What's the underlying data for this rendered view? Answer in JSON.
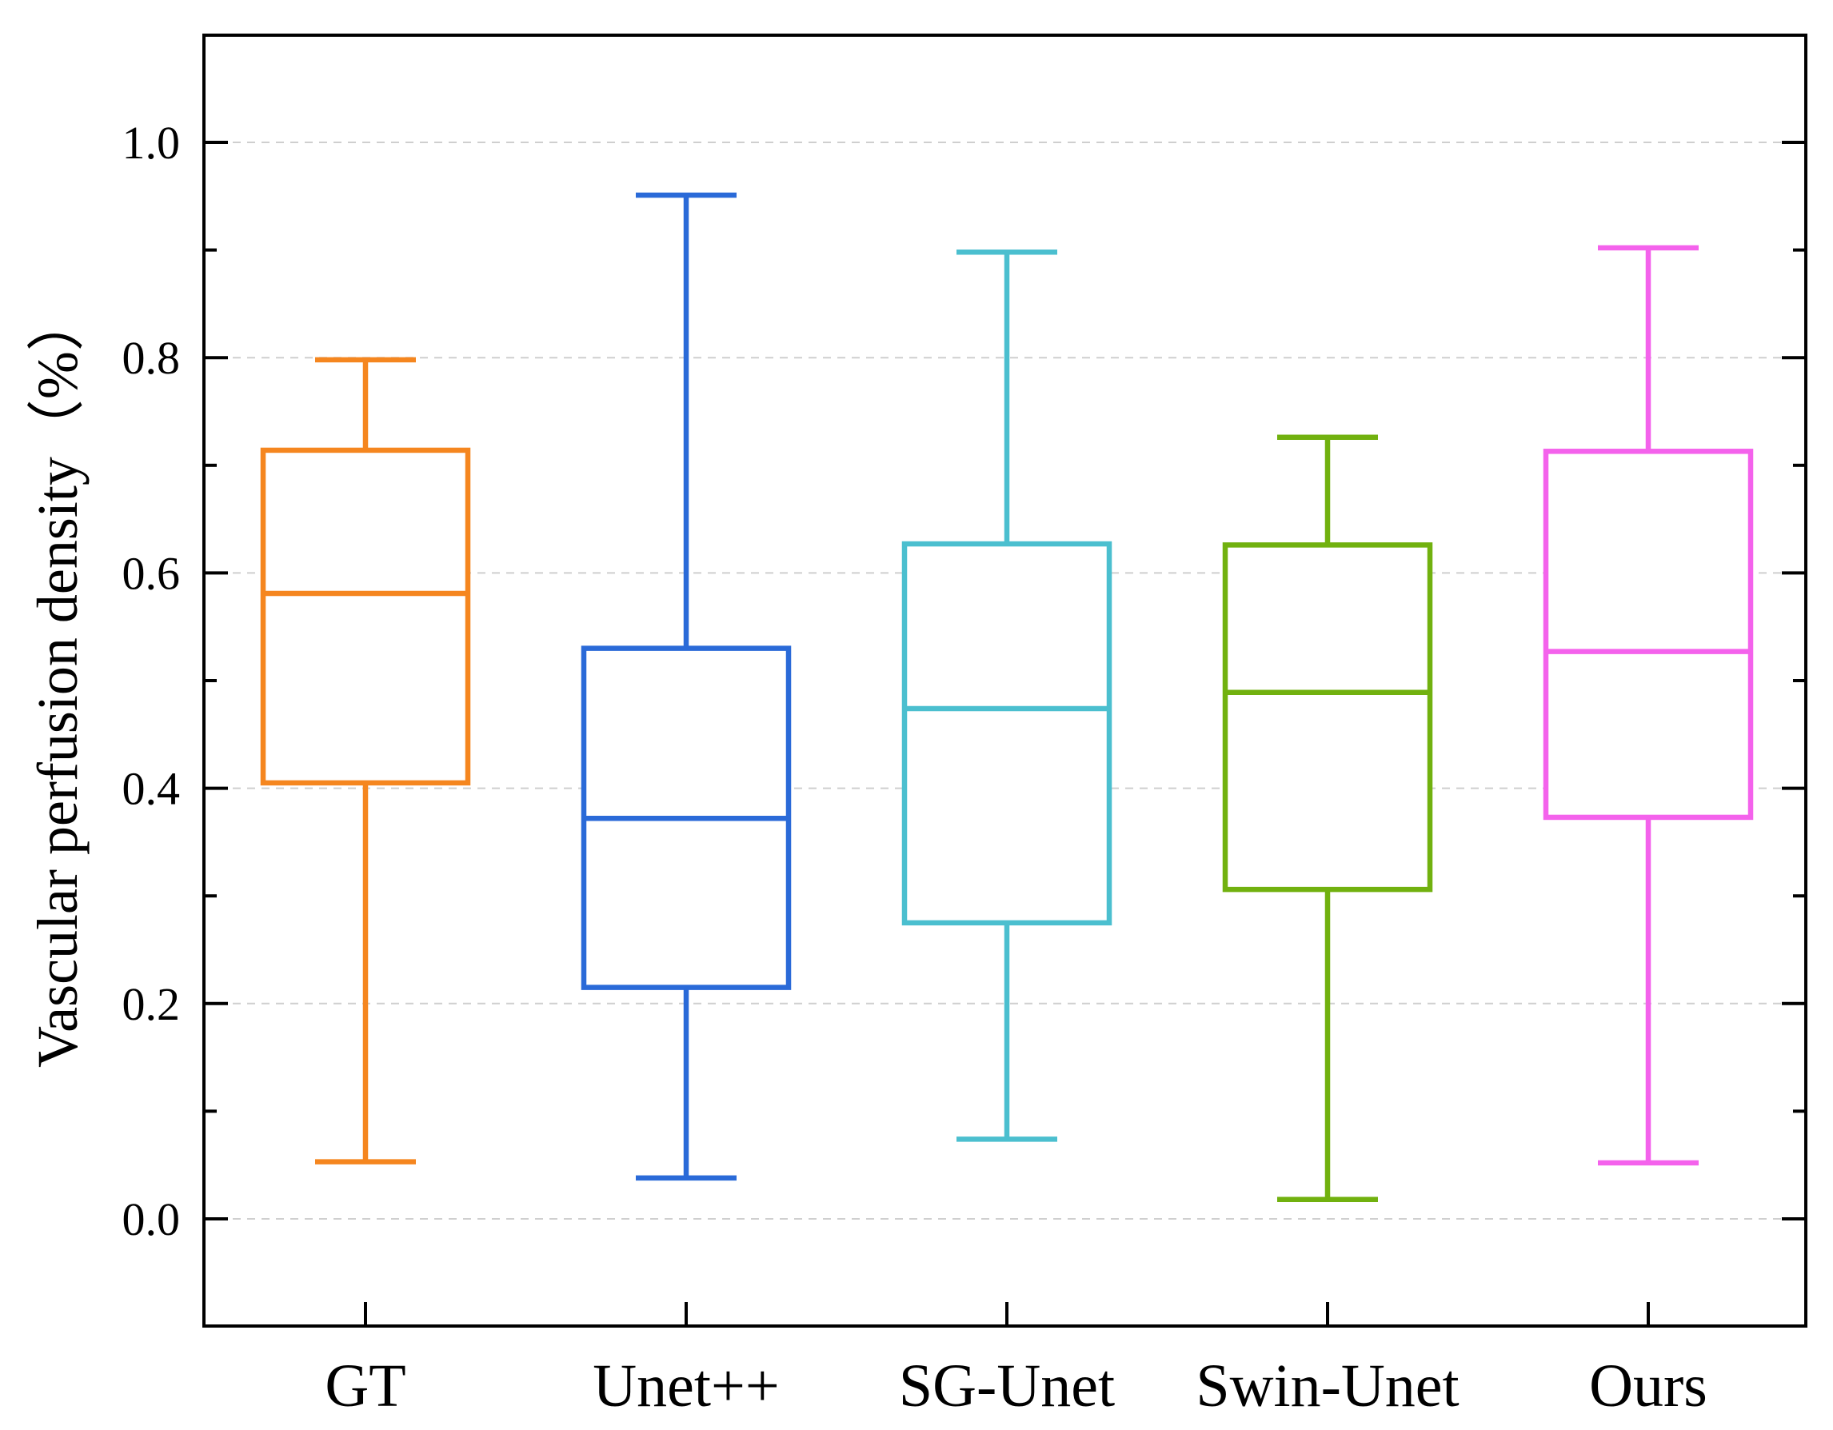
{
  "chart_data": {
    "type": "boxplot",
    "title": "",
    "xlabel": "",
    "ylabel": "Vascular perfusion density（%）",
    "ylim": [
      -0.1,
      1.1
    ],
    "yticks": [
      "0.0",
      "0.2",
      "0.4",
      "0.6",
      "0.8",
      "1.0"
    ],
    "grid": true,
    "categories": [
      "GT",
      "Unet++",
      "SG-Unet",
      "Swin-Unet",
      "Ours"
    ],
    "series": [
      {
        "name": "GT",
        "color": "#f5861f",
        "whisker_low": 0.053,
        "q1": 0.405,
        "median": 0.581,
        "q3": 0.714,
        "whisker_high": 0.798
      },
      {
        "name": "Unet++",
        "color": "#2a6ad8",
        "whisker_low": 0.038,
        "q1": 0.215,
        "median": 0.372,
        "q3": 0.53,
        "whisker_high": 0.951
      },
      {
        "name": "SG-Unet",
        "color": "#4bbfcf",
        "whisker_low": 0.074,
        "q1": 0.275,
        "median": 0.474,
        "q3": 0.627,
        "whisker_high": 0.898
      },
      {
        "name": "Swin-Unet",
        "color": "#71b10f",
        "whisker_low": 0.018,
        "q1": 0.306,
        "median": 0.489,
        "q3": 0.626,
        "whisker_high": 0.726
      },
      {
        "name": "Ours",
        "color": "#f462ec",
        "whisker_low": 0.052,
        "q1": 0.373,
        "median": 0.527,
        "q3": 0.713,
        "whisker_high": 0.902
      }
    ]
  }
}
